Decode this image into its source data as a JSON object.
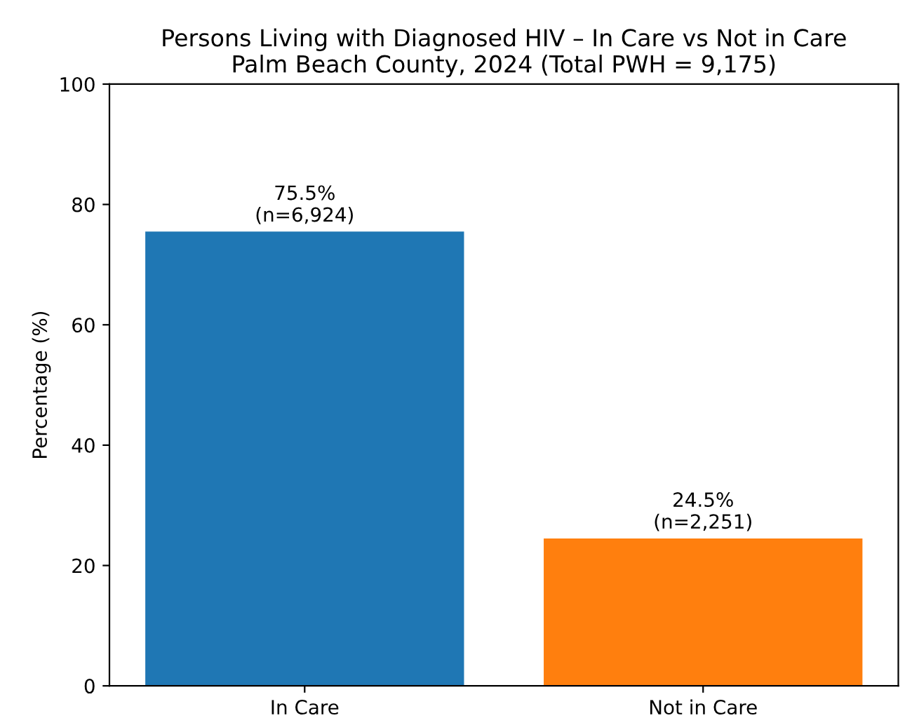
{
  "chart_data": {
    "type": "bar",
    "title": "Persons Living with Diagnosed HIV – In Care vs Not in Care\nPalm Beach County, 2024 (Total PWH = 9,175)",
    "ylabel": "Percentage (%)",
    "categories": [
      "In Care",
      "Not in Care"
    ],
    "values": [
      75.5,
      24.5
    ],
    "colors": [
      "#1f77b4",
      "#ff7f0e"
    ],
    "value_labels": [
      "75.5%\n(n=6,924)",
      "24.5%\n(n=2,251)"
    ],
    "ylim": [
      0,
      100
    ],
    "yticks": [
      0,
      20,
      40,
      60,
      80,
      100
    ],
    "grid": false,
    "legend": false
  }
}
